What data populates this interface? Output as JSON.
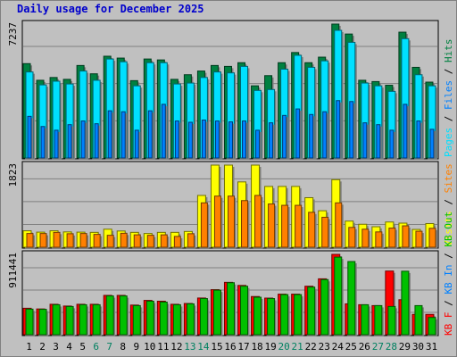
{
  "title": "Daily usage for December 2025",
  "colors": {
    "background": "#c0c0c0",
    "title": "#0000cc",
    "hits": "#008040",
    "files": "#0080ff",
    "pages": "#00e0ff",
    "visits": "#ffff00",
    "sites": "#ff8000",
    "kb_in": "#00c000",
    "kb_out": "#00c000",
    "kb_f": "#ff0000"
  },
  "day_label_colors": {
    "weekday": "#000000",
    "weekend": "#008060"
  },
  "chart_data": [
    {
      "type": "bar",
      "panel": "hits-files-pages",
      "y_max_label": "7237",
      "legend": [
        "Pages",
        "Files",
        "Hits"
      ],
      "categories": [
        "1",
        "2",
        "3",
        "4",
        "5",
        "6",
        "7",
        "8",
        "9",
        "10",
        "11",
        "12",
        "13",
        "14",
        "15",
        "16",
        "17",
        "18",
        "19",
        "20",
        "21",
        "22",
        "23",
        "24",
        "25",
        "26",
        "27",
        "28",
        "29",
        "30",
        "31"
      ],
      "series": [
        {
          "name": "Hits",
          "values": [
            5100,
            4200,
            4350,
            4250,
            5000,
            4550,
            5500,
            5400,
            4180,
            5350,
            5300,
            4250,
            4500,
            4700,
            5000,
            4950,
            5150,
            3900,
            4450,
            5150,
            5700,
            5150,
            5450,
            7237,
            6700,
            4200,
            4130,
            3930,
            6800,
            4900,
            4100
          ]
        },
        {
          "name": "Files",
          "values": [
            2250,
            1700,
            1500,
            1800,
            2000,
            1850,
            2550,
            2500,
            1500,
            2550,
            2900,
            2000,
            1930,
            2050,
            2000,
            1950,
            2000,
            1500,
            1900,
            2300,
            2650,
            2350,
            2500,
            3100,
            3050,
            1900,
            1800,
            1500,
            2900,
            2000,
            1550
          ]
        },
        {
          "name": "Pages",
          "values": [
            4650,
            3950,
            4150,
            4000,
            4700,
            4200,
            5350,
            5200,
            3900,
            5150,
            5150,
            4000,
            4050,
            4350,
            4650,
            4600,
            4950,
            3650,
            3700,
            4800,
            5550,
            4900,
            5250,
            6900,
            6250,
            4050,
            3900,
            3600,
            6450,
            4500,
            3900
          ]
        }
      ],
      "ylim": [
        0,
        7237
      ]
    },
    {
      "type": "bar",
      "panel": "visits-sites",
      "y_max_label": "1823",
      "legend": [
        "Visits",
        "Sites"
      ],
      "categories": [
        "1",
        "2",
        "3",
        "4",
        "5",
        "6",
        "7",
        "8",
        "9",
        "10",
        "11",
        "12",
        "13",
        "14",
        "15",
        "16",
        "17",
        "18",
        "19",
        "20",
        "21",
        "22",
        "23",
        "24",
        "25",
        "26",
        "27",
        "28",
        "29",
        "30",
        "31"
      ],
      "series": [
        {
          "name": "Visits",
          "values": [
            365,
            335,
            365,
            340,
            335,
            330,
            400,
            360,
            330,
            305,
            330,
            330,
            350,
            1150,
            1823,
            1823,
            1450,
            1823,
            1350,
            1350,
            1350,
            1100,
            810,
            1500,
            580,
            510,
            455,
            560,
            535,
            395,
            525
          ]
        },
        {
          "name": "Sites",
          "values": [
            305,
            305,
            330,
            300,
            305,
            285,
            265,
            310,
            275,
            265,
            275,
            240,
            300,
            985,
            1135,
            1135,
            1035,
            1150,
            960,
            930,
            930,
            775,
            665,
            985,
            440,
            400,
            340,
            425,
            475,
            355,
            420
          ]
        }
      ],
      "ylim": [
        0,
        1823
      ]
    },
    {
      "type": "bar",
      "panel": "kbytes",
      "y_max_label": "911441",
      "legend": [
        "KB F",
        "KB In",
        "KB Out"
      ],
      "categories": [
        "1",
        "2",
        "3",
        "4",
        "5",
        "6",
        "7",
        "8",
        "9",
        "10",
        "11",
        "12",
        "13",
        "14",
        "15",
        "16",
        "17",
        "18",
        "19",
        "20",
        "21",
        "22",
        "23",
        "24",
        "25",
        "26",
        "27",
        "28",
        "29",
        "30",
        "31"
      ],
      "series": [
        {
          "name": "KB F",
          "values": [
            300000,
            292000,
            345000,
            325000,
            345000,
            345000,
            446000,
            446000,
            336000,
            389000,
            380000,
            345000,
            354000,
            416000,
            511000,
            594000,
            559000,
            433000,
            415000,
            460000,
            460000,
            550000,
            634000,
            911441,
            350000,
            340000,
            330000,
            722000,
            397000,
            230000,
            230000
          ]
        },
        {
          "name": "KB Out",
          "values": [
            290000,
            288000,
            340000,
            320000,
            340000,
            340000,
            440000,
            440000,
            330000,
            380000,
            370000,
            340000,
            350000,
            410000,
            505000,
            590000,
            550000,
            425000,
            410000,
            455000,
            455000,
            540000,
            625000,
            880000,
            830000,
            340000,
            330000,
            320000,
            720000,
            330000,
            195000
          ]
        }
      ],
      "ylim": [
        0,
        911441
      ]
    }
  ]
}
